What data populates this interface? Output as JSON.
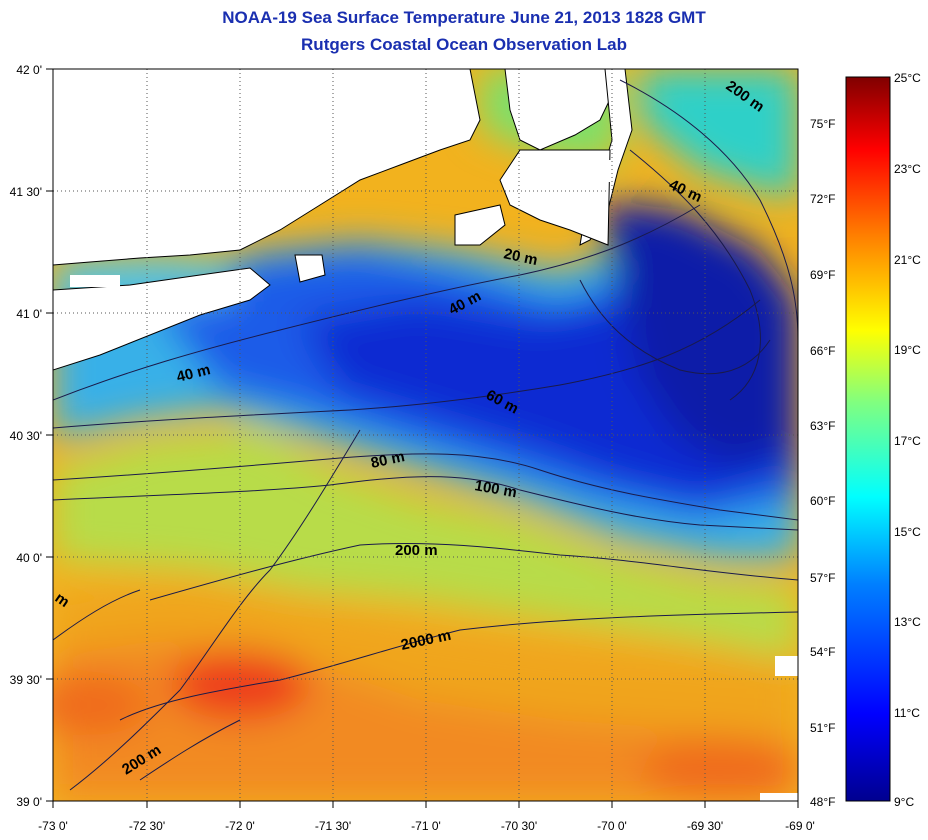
{
  "header": {
    "title": "NOAA-19 Sea Surface Temperature June 21, 2013 1828 GMT",
    "subtitle": "Rutgers Coastal Ocean Observation Lab"
  },
  "map": {
    "lon_labels": [
      "-73 0'",
      "-72 30'",
      "-72 0'",
      "-71 30'",
      "-71 0'",
      "-70 30'",
      "-70 0'",
      "-69 30'",
      "-69 0'"
    ],
    "lat_labels": [
      "42 0'",
      "41 30'",
      "41 0'",
      "40 30'",
      "40 0'",
      "39 30'",
      "39 0'"
    ],
    "fahrenheit_labels": [
      "75°F",
      "72°F",
      "69°F",
      "66°F",
      "63°F",
      "60°F",
      "57°F",
      "54°F",
      "51°F",
      "48°F"
    ],
    "isobath_labels": {
      "d20": "20 m",
      "d40a": "40 m",
      "d40b": "40 m",
      "d40c": "40 m",
      "d60": "60 m",
      "d80": "80 m",
      "d100": "100 m",
      "d200a": "200 m",
      "d200b": "200 m",
      "d200c": "200 m",
      "d2000": "2000 m",
      "edge": "m"
    }
  },
  "colorbar": {
    "celsius_labels": [
      "25°C",
      "23°C",
      "21°C",
      "19°C",
      "17°C",
      "15°C",
      "13°C",
      "11°C",
      "9°C"
    ],
    "range_c": [
      9,
      25
    ],
    "colors": [
      "#00008f",
      "#0000ff",
      "#0080ff",
      "#00ffff",
      "#80ff80",
      "#ffff00",
      "#ff8000",
      "#ff0000",
      "#800000"
    ]
  }
}
